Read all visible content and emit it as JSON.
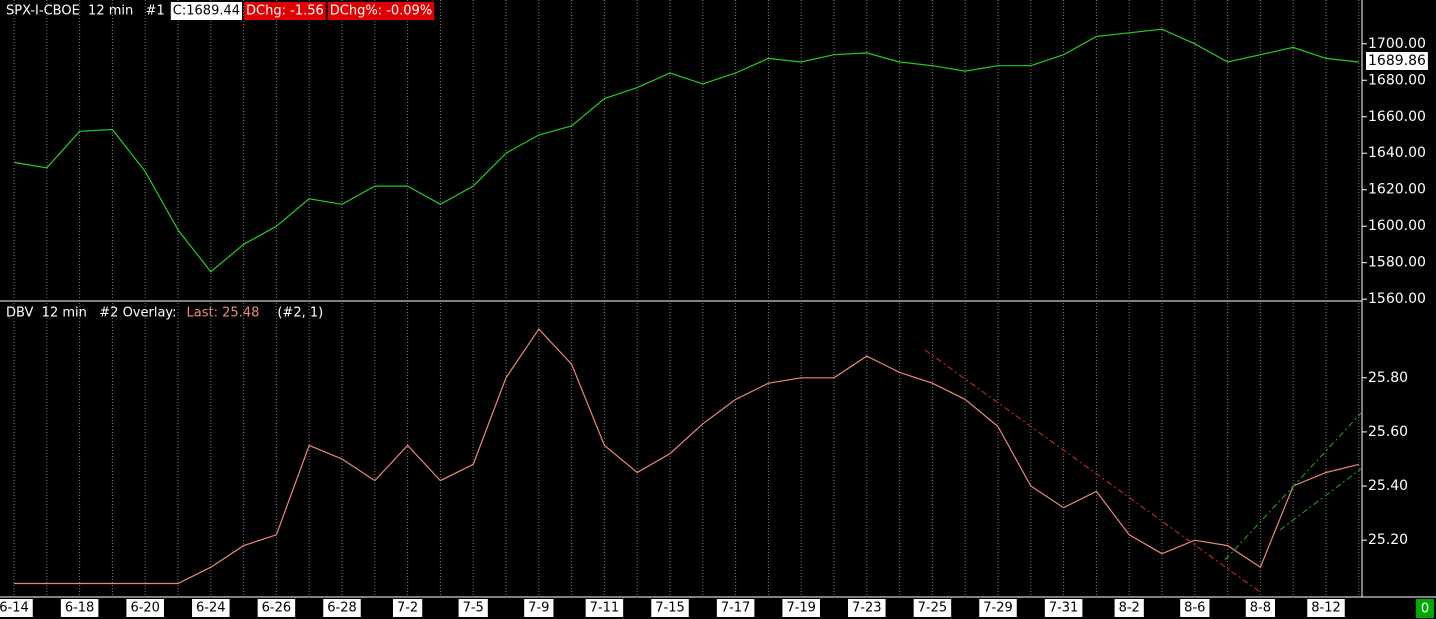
{
  "chart_data": [
    {
      "type": "line",
      "title": "SPX-I-CBOE  12 min   #1",
      "annotations": [
        "C:1689.44",
        "DChg: -1.56",
        "DChg%: -0.09%"
      ],
      "last_label": "1689.86",
      "series": [
        {
          "name": "SPX-I-CBOE",
          "color": "#22cc22",
          "values": [
            1635,
            1632,
            1652,
            1653,
            1630,
            1598,
            1575,
            1590,
            1600,
            1615,
            1612,
            1622,
            1622,
            1612,
            1622,
            1640,
            1650,
            1655,
            1670,
            1676,
            1684,
            1678,
            1684,
            1692,
            1690,
            1694,
            1695,
            1690,
            1688,
            1685,
            1688,
            1688,
            1694,
            1704,
            1706,
            1708,
            1700,
            1690,
            1694,
            1698,
            1692,
            1690
          ]
        }
      ],
      "ylim": [
        1559,
        1724
      ],
      "yticks": [
        {
          "value": 1560,
          "label": "1560.00"
        },
        {
          "value": 1580,
          "label": "1580.00"
        },
        {
          "value": 1600,
          "label": "1600.00"
        },
        {
          "value": 1620,
          "label": "1620.00"
        },
        {
          "value": 1640,
          "label": "1640.00"
        },
        {
          "value": 1660,
          "label": "1660.00"
        },
        {
          "value": 1680,
          "label": "1680.00"
        },
        {
          "value": 1700,
          "label": "1700.00"
        }
      ]
    },
    {
      "type": "line",
      "title": "DBV  12 min   #2 Overlay:",
      "annotations": [
        "Last: 25.48",
        "(#2, 1)"
      ],
      "categories": [
        "6-14",
        null,
        "6-18",
        null,
        "6-20",
        null,
        "6-24",
        null,
        "6-26",
        null,
        "6-28",
        null,
        "7-2",
        null,
        "7-5",
        null,
        "7-9",
        null,
        "7-11",
        null,
        "7-15",
        null,
        "7-17",
        null,
        "7-19",
        null,
        "7-23",
        null,
        "7-25",
        null,
        "7-29",
        null,
        "7-31",
        null,
        "8-2",
        null,
        "8-6",
        null,
        "8-8",
        null,
        "8-12",
        null
      ],
      "series": [
        {
          "name": "DBV",
          "color": "#e8887a",
          "values": [
            25.04,
            25.04,
            25.04,
            25.04,
            25.04,
            25.04,
            25.1,
            25.18,
            25.22,
            25.55,
            25.5,
            25.42,
            25.55,
            25.42,
            25.48,
            25.8,
            25.98,
            25.85,
            25.55,
            25.45,
            25.52,
            25.63,
            25.72,
            25.78,
            25.8,
            25.8,
            25.88,
            25.82,
            25.78,
            25.72,
            25.62,
            25.4,
            25.32,
            25.38,
            25.22,
            25.15,
            25.2,
            25.18,
            25.1,
            25.4,
            25.45,
            25.48
          ]
        }
      ],
      "ylim": [
        24.99,
        26.08
      ],
      "yticks": [
        {
          "value": 25.2,
          "label": "25.20"
        },
        {
          "value": 25.4,
          "label": "25.40"
        },
        {
          "value": 25.6,
          "label": "25.60"
        },
        {
          "value": 25.8,
          "label": "25.80"
        }
      ]
    }
  ],
  "status_badge": "0"
}
